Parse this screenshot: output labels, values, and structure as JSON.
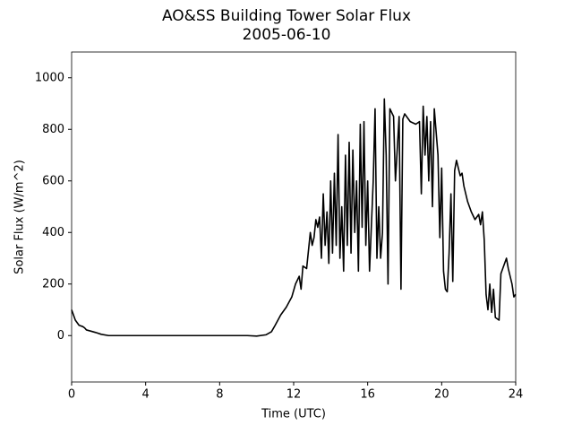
{
  "chart_data": {
    "type": "line",
    "title": "AO&SS Building Tower Solar Flux",
    "subtitle": "2005-06-10",
    "x_label": "Time (UTC)",
    "y_label": "Solar Flux (W/m^2)",
    "xlim": [
      0,
      24
    ],
    "xticks": [
      0,
      4,
      8,
      12,
      16,
      20,
      24
    ],
    "ylim": [
      -180,
      1100
    ],
    "yticks": [
      0,
      200,
      400,
      600,
      800,
      1000
    ],
    "grid": false,
    "series": [
      {
        "name": "Solar Flux",
        "color": "#000000",
        "x": [
          0,
          0.2,
          0.4,
          0.6,
          0.7,
          0.8,
          1.0,
          1.3,
          1.6,
          2.0,
          3.0,
          5.0,
          7.0,
          9.0,
          9.5,
          10.0,
          10.5,
          10.8,
          11.0,
          11.3,
          11.6,
          11.9,
          12.1,
          12.3,
          12.4,
          12.5,
          12.7,
          12.8,
          12.9,
          13.0,
          13.1,
          13.2,
          13.3,
          13.4,
          13.5,
          13.6,
          13.7,
          13.8,
          13.9,
          14.0,
          14.1,
          14.2,
          14.3,
          14.4,
          14.5,
          14.6,
          14.7,
          14.8,
          14.9,
          15.0,
          15.1,
          15.2,
          15.3,
          15.4,
          15.5,
          15.6,
          15.7,
          15.8,
          15.9,
          16.0,
          16.1,
          16.3,
          16.4,
          16.5,
          16.6,
          16.7,
          16.8,
          16.9,
          17.0,
          17.1,
          17.2,
          17.4,
          17.5,
          17.7,
          17.8,
          17.9,
          18.0,
          18.3,
          18.6,
          18.8,
          18.9,
          19.0,
          19.1,
          19.2,
          19.3,
          19.4,
          19.5,
          19.6,
          19.8,
          19.9,
          20.0,
          20.1,
          20.2,
          20.3,
          20.4,
          20.5,
          20.6,
          20.7,
          20.8,
          20.9,
          21.0,
          21.1,
          21.2,
          21.4,
          21.6,
          21.8,
          22.0,
          22.1,
          22.2,
          22.3,
          22.4,
          22.5,
          22.6,
          22.7,
          22.8,
          22.9,
          23.1,
          23.2,
          23.4,
          23.5,
          23.6,
          23.8,
          23.9,
          24.0
        ],
        "values": [
          100,
          60,
          40,
          35,
          30,
          22,
          18,
          12,
          5,
          0,
          0,
          0,
          0,
          0,
          0,
          -2,
          3,
          15,
          40,
          80,
          110,
          150,
          200,
          230,
          180,
          270,
          260,
          330,
          400,
          350,
          380,
          450,
          420,
          460,
          300,
          550,
          350,
          480,
          280,
          600,
          320,
          630,
          350,
          780,
          300,
          500,
          250,
          700,
          350,
          750,
          320,
          720,
          400,
          600,
          250,
          820,
          420,
          830,
          350,
          600,
          250,
          600,
          880,
          300,
          500,
          300,
          400,
          918,
          700,
          200,
          880,
          850,
          600,
          850,
          180,
          840,
          860,
          830,
          820,
          830,
          550,
          890,
          700,
          850,
          600,
          830,
          500,
          880,
          700,
          380,
          650,
          250,
          180,
          170,
          320,
          550,
          210,
          640,
          680,
          650,
          620,
          630,
          580,
          520,
          480,
          450,
          470,
          430,
          480,
          370,
          160,
          100,
          200,
          90,
          180,
          70,
          60,
          240,
          280,
          300,
          260,
          200,
          150,
          160
        ]
      }
    ]
  }
}
